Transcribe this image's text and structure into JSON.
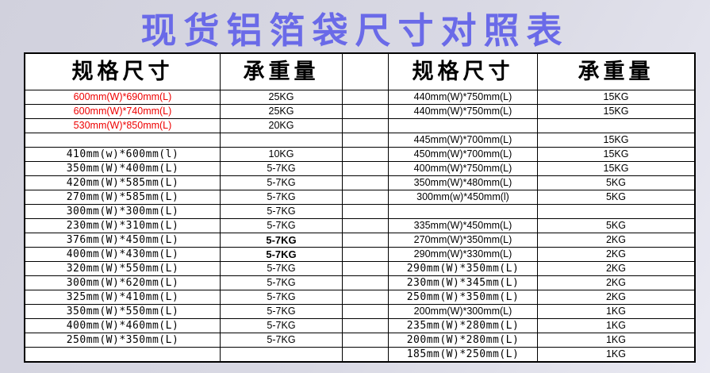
{
  "title": "现货铝箔袋尺寸对照表",
  "colors": {
    "title_text": "#6a6ae8",
    "highlight_row_text": "#ee0000",
    "table_border": "#000000",
    "cell_background": "#ffffff",
    "page_background": "#d9d9e4"
  },
  "left_table": {
    "headers": {
      "spec": "规格尺寸",
      "weight": "承重量"
    },
    "rows": [
      {
        "spec": "600mm(W)*690mm(L)",
        "weight": "25KG",
        "style": "red"
      },
      {
        "spec": "600mm(W)*740mm(L)",
        "weight": "25KG",
        "style": "red"
      },
      {
        "spec": "530mm(W)*850mm(L)",
        "weight": "20KG",
        "style": "red"
      },
      {
        "spec": "",
        "weight": "",
        "style": "empty"
      },
      {
        "spec": "410mm(w)*600mm(l)",
        "weight": "10KG",
        "style": "mono"
      },
      {
        "spec": "350mm(W)*400mm(L)",
        "weight": "5-7KG",
        "style": "mono"
      },
      {
        "spec": "420mm(W)*585mm(L)",
        "weight": "5-7KG",
        "style": "mono"
      },
      {
        "spec": "270mm(W)*585mm(L)",
        "weight": "5-7KG",
        "style": "mono"
      },
      {
        "spec": "300mm(W)*300mm(L)",
        "weight": "5-7KG",
        "style": "mono"
      },
      {
        "spec": "230mm(W)*310mm(L)",
        "weight": "5-7KG",
        "style": "mono"
      },
      {
        "spec": "376mm(W)*450mm(L)",
        "weight": "5-7KG",
        "style": "mono",
        "weight_bold": true
      },
      {
        "spec": "400mm(W)*430mm(L)",
        "weight": "5-7KG",
        "style": "mono",
        "weight_bold": true
      },
      {
        "spec": "320mm(W)*550mm(L)",
        "weight": "5-7KG",
        "style": "mono"
      },
      {
        "spec": "300mm(W)*620mm(L)",
        "weight": "5-7KG",
        "style": "mono"
      },
      {
        "spec": "325mm(W)*410mm(L)",
        "weight": "5-7KG",
        "style": "mono"
      },
      {
        "spec": "350mm(W)*550mm(L)",
        "weight": "5-7KG",
        "style": "mono"
      },
      {
        "spec": "400mm(W)*460mm(L)",
        "weight": "5-7KG",
        "style": "mono"
      },
      {
        "spec": "250mm(W)*350mm(L)",
        "weight": "5-7KG",
        "style": "mono"
      },
      {
        "spec": "",
        "weight": "",
        "style": "empty"
      }
    ]
  },
  "right_table": {
    "headers": {
      "spec": "规格尺寸",
      "weight": "承重量"
    },
    "rows": [
      {
        "spec": "440mm(W)*750mm(L)",
        "weight": "15KG",
        "style": "sans"
      },
      {
        "spec": "440mm(W)*750mm(L)",
        "weight": "15KG",
        "style": "sans"
      },
      {
        "spec": "",
        "weight": "",
        "style": "empty"
      },
      {
        "spec": "445mm(W)*700mm(L)",
        "weight": "15KG",
        "style": "sans"
      },
      {
        "spec": "450mm(W)*700mm(L)",
        "weight": "15KG",
        "style": "sans"
      },
      {
        "spec": "400mm(W)*750mm(L)",
        "weight": "15KG",
        "style": "sans"
      },
      {
        "spec": "350mm(W)*480mm(L)",
        "weight": "5KG",
        "style": "sans"
      },
      {
        "spec": "300mm(w)*450mm(l)",
        "weight": "5KG",
        "style": "sans"
      },
      {
        "spec": "",
        "weight": "",
        "style": "empty"
      },
      {
        "spec": "335mm(W)*450mm(L)",
        "weight": "5KG",
        "style": "sans"
      },
      {
        "spec": "270mm(W)*350mm(L)",
        "weight": "2KG",
        "style": "sans"
      },
      {
        "spec": "290mm(W)*330mm(L)",
        "weight": "2KG",
        "style": "sans"
      },
      {
        "spec": "290mm(W)*350mm(L)",
        "weight": "2KG",
        "style": "mono"
      },
      {
        "spec": "230mm(W)*345mm(L)",
        "weight": "2KG",
        "style": "mono"
      },
      {
        "spec": "250mm(W)*350mm(L)",
        "weight": "2KG",
        "style": "mono"
      },
      {
        "spec": "200mm(W)*300mm(L)",
        "weight": "1KG",
        "style": "sans"
      },
      {
        "spec": "235mm(W)*280mm(L)",
        "weight": "1KG",
        "style": "mono"
      },
      {
        "spec": "200mm(W)*280mm(L)",
        "weight": "1KG",
        "style": "mono"
      },
      {
        "spec": "185mm(W)*250mm(L)",
        "weight": "1KG",
        "style": "mono"
      }
    ]
  }
}
